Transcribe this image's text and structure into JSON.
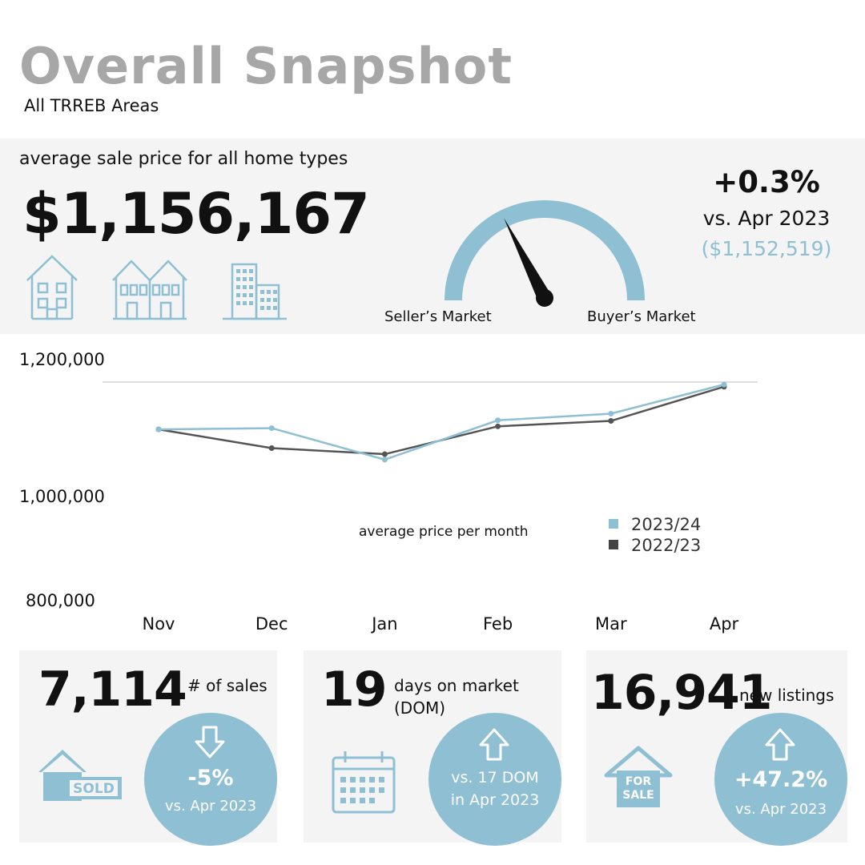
{
  "header": {
    "title": "Overall Snapshot",
    "subtitle": "All TRREB Areas"
  },
  "hero": {
    "label": "average sale price for all home types",
    "price": "$1,156,167",
    "icons": [
      "detached-house-icon",
      "semi-detached-house-icon",
      "condo-building-icon"
    ],
    "gauge": {
      "left_label": "Seller’s Market",
      "right_label": "Buyer’s Market",
      "needle_position": 0.35
    },
    "change": {
      "pct": "+0.3%",
      "vs": "vs. Apr 2023",
      "prev": "($1,152,519)"
    }
  },
  "chart_data": {
    "type": "line",
    "categories": [
      "Nov",
      "Dec",
      "Jan",
      "Feb",
      "Mar",
      "Apr"
    ],
    "series": [
      {
        "name": "2023/24",
        "color": "#8ebfd3",
        "values": [
          1082000,
          1084000,
          1032000,
          1097000,
          1108000,
          1156167
        ]
      },
      {
        "name": "2022/23",
        "color": "#555555",
        "values": [
          1082000,
          1051000,
          1041000,
          1087000,
          1096000,
          1152519
        ]
      }
    ],
    "y_tick_labels": [
      "1,200,000",
      "1,000,000",
      "800,000"
    ],
    "ylim": [
      800000,
      1200000
    ],
    "caption": "average price per month",
    "legend_position": "right"
  },
  "cards": [
    {
      "number": "7,114",
      "label": "# of sales",
      "icon": "sold-house-icon",
      "icon_text": "SOLD",
      "arrow": "down-arrow-icon",
      "change": "-5%",
      "vs": "vs. Apr 2023"
    },
    {
      "number": "19",
      "label": "days on market (DOM)",
      "icon": "calendar-icon",
      "arrow": "up-arrow-icon",
      "line1": "vs. 17 DOM",
      "line2": "in Apr 2023"
    },
    {
      "number": "16,941",
      "label": "new listings",
      "icon": "for-sale-house-icon",
      "icon_text": "FOR SALE",
      "icon_line1": "FOR",
      "icon_line2": "SALE",
      "arrow": "up-arrow-icon",
      "change": "+47.2%",
      "vs": "vs. Apr 2023"
    }
  ],
  "colors": {
    "accent": "#8ebfd3",
    "panel": "#f4f4f4",
    "title": "#a7a7a7",
    "series_prev": "#555555"
  }
}
